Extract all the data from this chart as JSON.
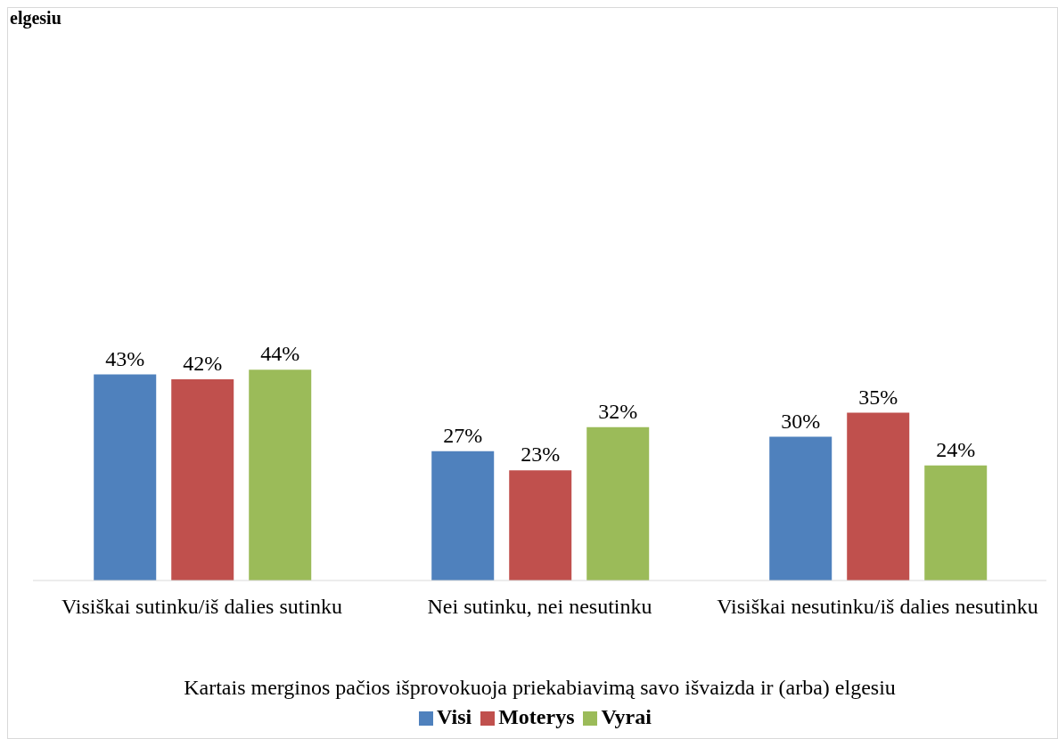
{
  "chart_data": {
    "type": "bar",
    "title": "elgesiu",
    "xlabel": "Kartais merginos pačios išprovokuoja priekabiavimą savo išvaizda ir (arba) elgesiu",
    "categories": [
      "Visiškai sutinku/iš dalies sutinku",
      "Nei sutinku, nei nesutinku",
      "Visiškai nesutinku/iš dalies nesutinku"
    ],
    "series": [
      {
        "name": "Visi",
        "color": "#4f81bd",
        "values": [
          43,
          27,
          30
        ],
        "value_labels": [
          "43%",
          "27%",
          "30%"
        ]
      },
      {
        "name": "Moterys",
        "color": "#c0504d",
        "values": [
          42,
          23,
          35
        ],
        "value_labels": [
          "42%",
          "23%",
          "35%"
        ]
      },
      {
        "name": "Vyrai",
        "color": "#9bbb59",
        "values": [
          44,
          32,
          24
        ],
        "value_labels": [
          "44%",
          "32%",
          "24%"
        ]
      }
    ],
    "legend": "bottom",
    "grid": false
  }
}
